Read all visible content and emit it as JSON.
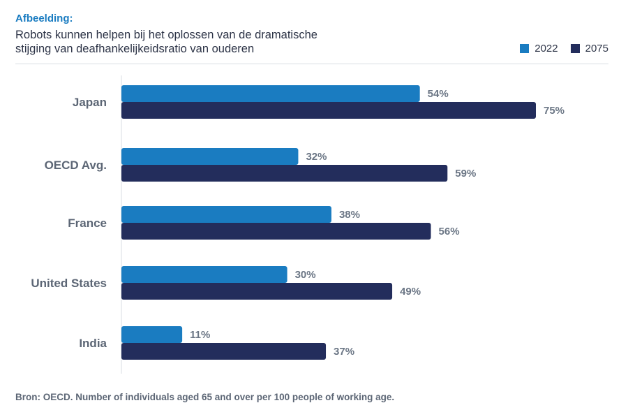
{
  "header": {
    "kicker": "Afbeelding:",
    "title_line1": "Robots kunnen helpen bij het oplossen van de dramatische",
    "title_line2": "stijging van deafhankelijkeidsratio van ouderen"
  },
  "colors": {
    "accent": "#1a7cc1",
    "series_2022": "#1a7cc1",
    "series_2075": "#232d5c",
    "category_label": "#5c6675",
    "value_label": "#6b7685"
  },
  "footnote": "Bron: OECD. Number of individuals aged 65 and over per 100 people of working age.",
  "chart_data": {
    "type": "bar",
    "orientation": "horizontal",
    "categories": [
      "Japan",
      "OECD Avg.",
      "France",
      "United States",
      "India"
    ],
    "series": [
      {
        "name": "2022",
        "values": [
          54,
          32,
          38,
          30,
          11
        ],
        "labels": [
          "54%",
          "32%",
          "38%",
          "30%",
          "11%"
        ]
      },
      {
        "name": "2075",
        "values": [
          75,
          59,
          56,
          49,
          37
        ],
        "labels": [
          "75%",
          "59%",
          "56%",
          "49%",
          "37%"
        ]
      }
    ],
    "legend_position": "top-right",
    "grid": false,
    "xlim": [
      0,
      100
    ]
  }
}
